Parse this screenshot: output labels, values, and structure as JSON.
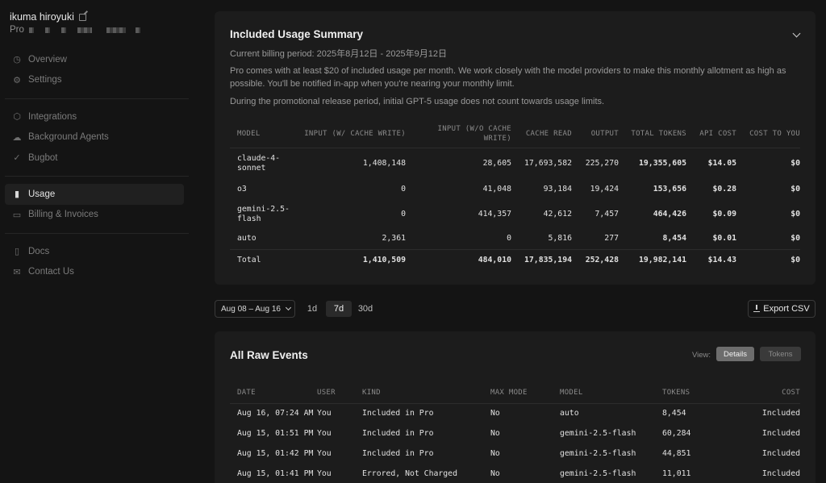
{
  "user": {
    "name": "ikuma hiroyuki",
    "plan": "Pro"
  },
  "nav": {
    "group1": [
      {
        "label": "Overview",
        "icon": "clock-icon"
      },
      {
        "label": "Settings",
        "icon": "gear-icon"
      }
    ],
    "group2": [
      {
        "label": "Integrations",
        "icon": "cube-icon"
      },
      {
        "label": "Background Agents",
        "icon": "cloud-icon"
      },
      {
        "label": "Bugbot",
        "icon": "check-circle-icon"
      }
    ],
    "group3": [
      {
        "label": "Usage",
        "icon": "bar-chart-icon",
        "active": true
      },
      {
        "label": "Billing & Invoices",
        "icon": "card-icon"
      }
    ],
    "group4": [
      {
        "label": "Docs",
        "icon": "doc-icon"
      },
      {
        "label": "Contact Us",
        "icon": "mail-icon"
      }
    ]
  },
  "summary": {
    "title": "Included Usage Summary",
    "billing_period": "Current billing period: 2025年8月12日 - 2025年9月12日",
    "desc1": "Pro comes with at least $20 of included usage per month. We work closely with the model providers to make this monthly allotment as high as possible. You'll be notified in-app when you're nearing your monthly limit.",
    "desc2": "During the promotional release period, initial GPT-5 usage does not count towards usage limits.",
    "columns": [
      "MODEL",
      "INPUT (W/ CACHE WRITE)",
      "INPUT (W/O CACHE WRITE)",
      "CACHE READ",
      "OUTPUT",
      "TOTAL TOKENS",
      "API COST",
      "COST TO YOU"
    ],
    "rows": [
      [
        "claude-4-sonnet",
        "1,408,148",
        "28,605",
        "17,693,582",
        "225,270",
        "19,355,605",
        "$14.05",
        "$0"
      ],
      [
        "o3",
        "0",
        "41,048",
        "93,184",
        "19,424",
        "153,656",
        "$0.28",
        "$0"
      ],
      [
        "gemini-2.5-flash",
        "0",
        "414,357",
        "42,612",
        "7,457",
        "464,426",
        "$0.09",
        "$0"
      ],
      [
        "auto",
        "2,361",
        "0",
        "5,816",
        "277",
        "8,454",
        "$0.01",
        "$0"
      ]
    ],
    "total": [
      "Total",
      "1,410,509",
      "484,010",
      "17,835,194",
      "252,428",
      "19,982,141",
      "$14.43",
      "$0"
    ]
  },
  "controls": {
    "range": "Aug 08 – Aug 16",
    "seg_1d": "1d",
    "seg_7d": "7d",
    "seg_30d": "30d",
    "export": "Export CSV"
  },
  "events": {
    "title": "All Raw Events",
    "view_label": "View:",
    "toggle_details": "Details",
    "toggle_tokens": "Tokens",
    "columns": [
      "DATE",
      "USER",
      "KIND",
      "MAX MODE",
      "MODEL",
      "TOKENS",
      "COST"
    ],
    "rows": [
      [
        "Aug 16, 07:24 AM",
        "You",
        "Included in Pro",
        "No",
        "auto",
        "8,454",
        "Included"
      ],
      [
        "Aug 15, 01:51 PM",
        "You",
        "Included in Pro",
        "No",
        "gemini-2.5-flash",
        "60,284",
        "Included"
      ],
      [
        "Aug 15, 01:42 PM",
        "You",
        "Included in Pro",
        "No",
        "gemini-2.5-flash",
        "44,851",
        "Included"
      ],
      [
        "Aug 15, 01:41 PM",
        "You",
        "Errored, Not Charged",
        "No",
        "gemini-2.5-flash",
        "11,011",
        "Included"
      ]
    ]
  }
}
